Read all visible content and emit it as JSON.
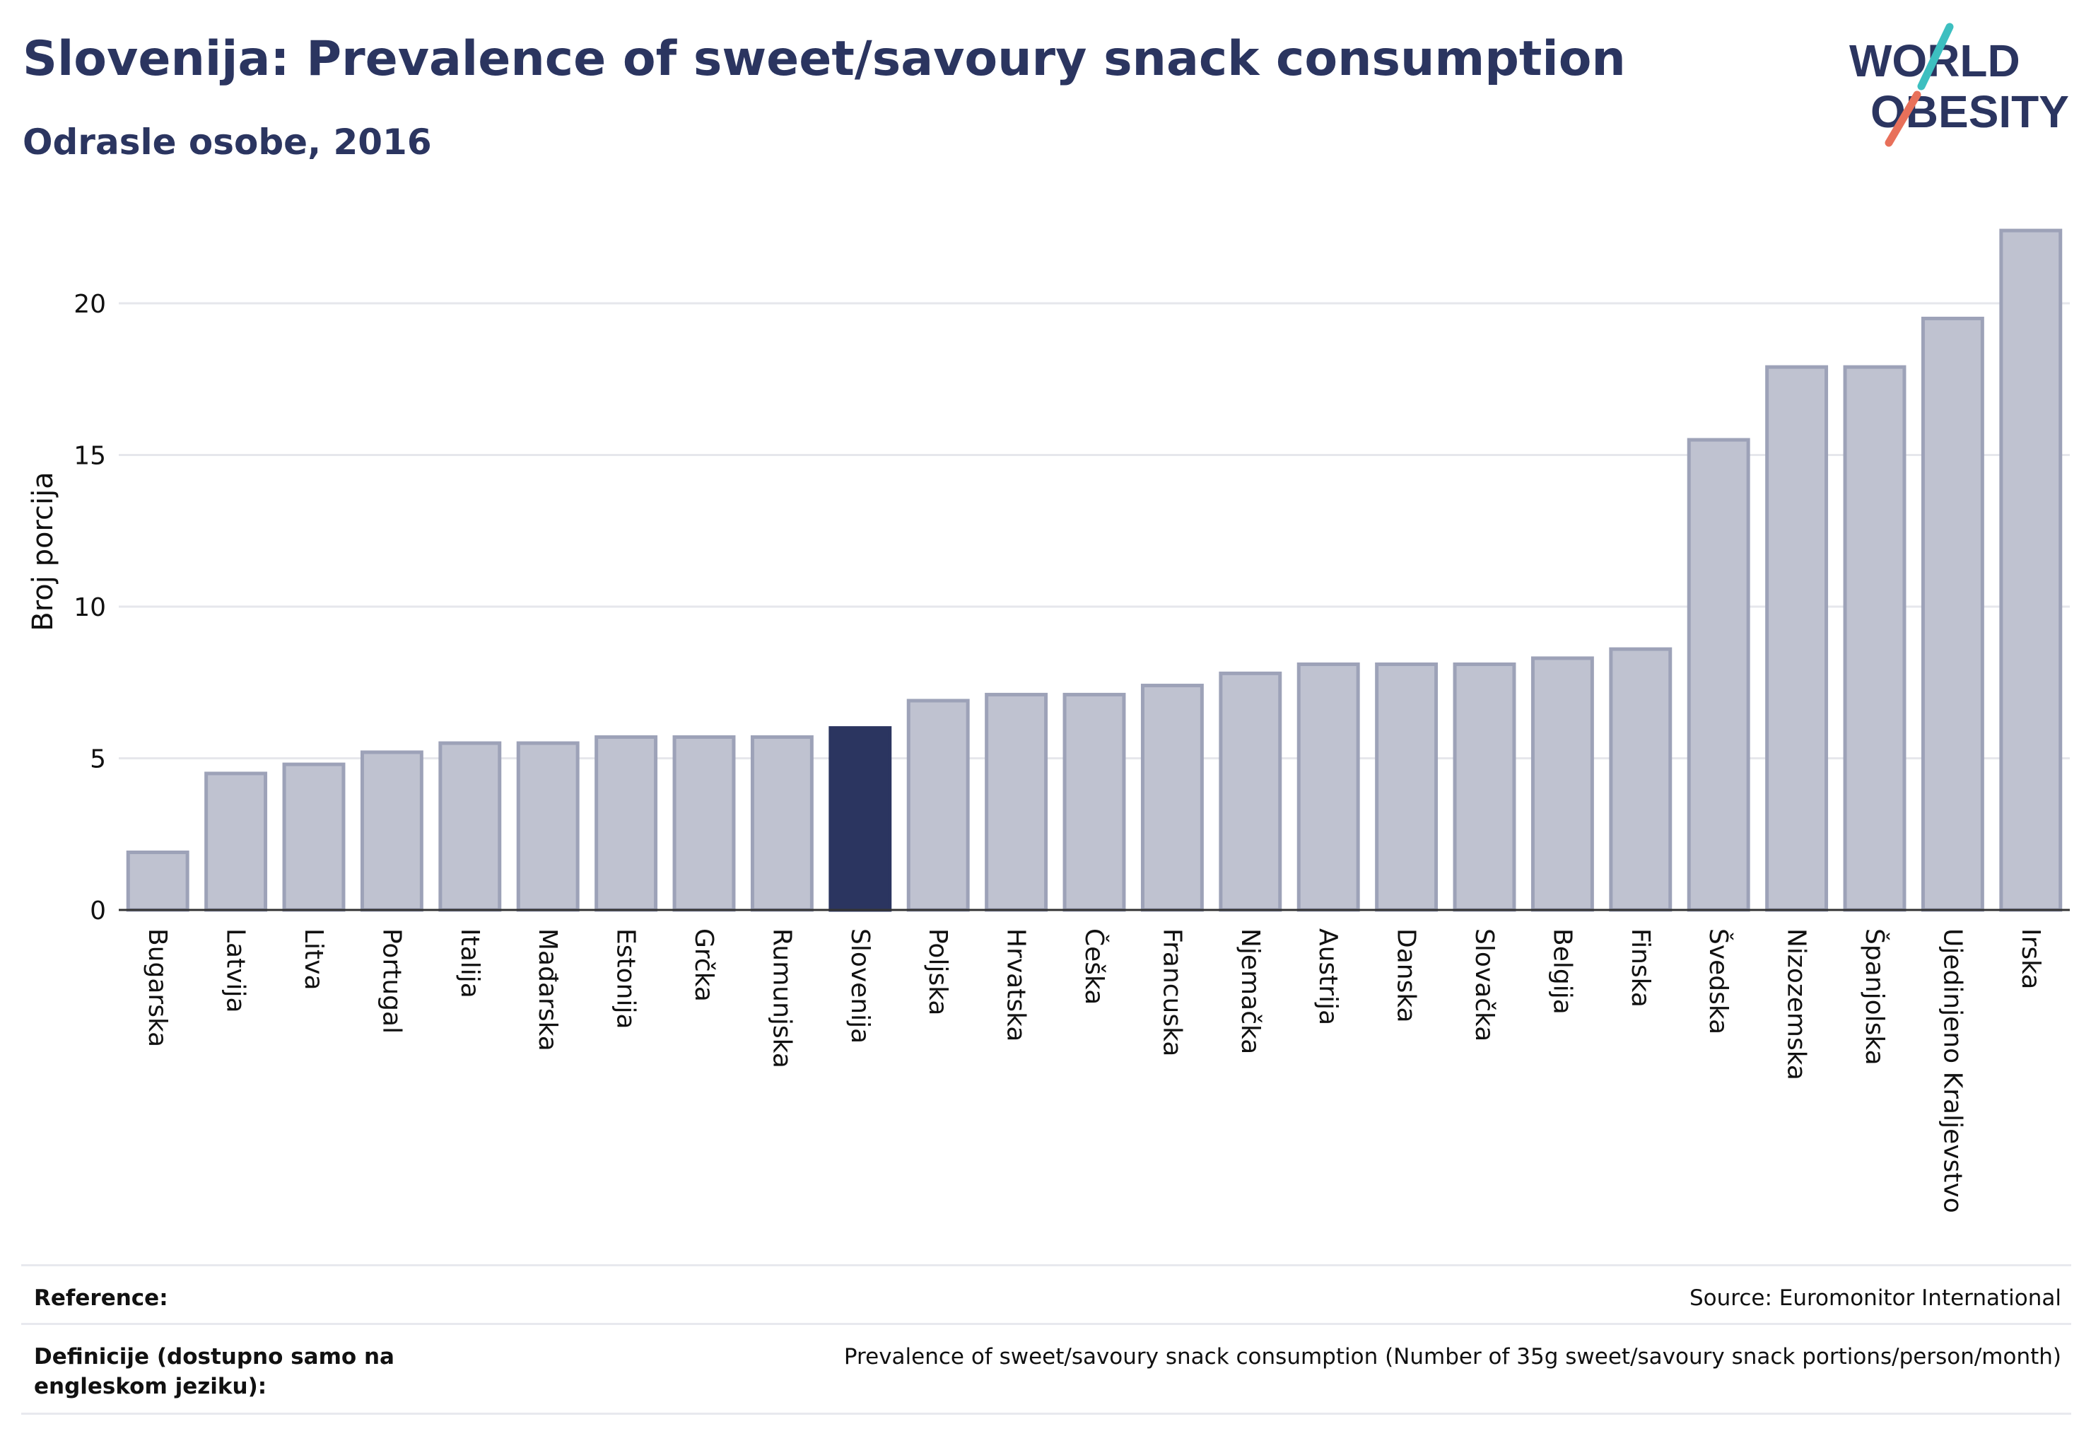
{
  "header": {
    "title": "Slovenija: Prevalence of sweet/savoury snack consumption",
    "subtitle": "Odrasle osobe, 2016"
  },
  "logo": {
    "text_line1": "WORLD",
    "text_line2": "OBESITY",
    "colors": {
      "text": "#2b3560",
      "slash_top": "#3dbfc0",
      "slash_bottom": "#e8705a"
    }
  },
  "colors": {
    "highlight_bar": "#2b3560",
    "bar_fill": "#bfc2d0",
    "bar_stroke": "#9da2b8",
    "grid": "#e6e7ec",
    "axis": "#333333",
    "text": "#111111"
  },
  "chart_data": {
    "type": "bar",
    "title": "Slovenija: Prevalence of sweet/savoury snack consumption",
    "subtitle": "Odrasle osobe, 2016",
    "xlabel": "",
    "ylabel": "Broj porcija",
    "ylim": [
      0,
      23
    ],
    "yticks": [
      0,
      5,
      10,
      15,
      20
    ],
    "grid": true,
    "highlight": "Slovenija",
    "categories": [
      "Bugarska",
      "Latvija",
      "Litva",
      "Portugal",
      "Italija",
      "Mađarska",
      "Estonija",
      "Grčka",
      "Rumunjska",
      "Slovenija",
      "Poljska",
      "Hrvatska",
      "Češka",
      "Francuska",
      "Njemačka",
      "Austrija",
      "Danska",
      "Slovačka",
      "Belgija",
      "Finska",
      "Švedska",
      "Nizozemska",
      "Španjolska",
      "Ujedinjeno Kraljevstvo",
      "Irska"
    ],
    "values": [
      1.9,
      4.5,
      4.8,
      5.2,
      5.5,
      5.5,
      5.7,
      5.7,
      5.7,
      6.0,
      6.9,
      7.1,
      7.1,
      7.4,
      7.8,
      8.1,
      8.1,
      8.1,
      8.3,
      8.6,
      15.5,
      17.9,
      17.9,
      19.5,
      22.4
    ]
  },
  "references": [
    {
      "label": "Reference:",
      "value": "Source: Euromonitor International"
    },
    {
      "label": "Definicije (dostupno samo na engleskom jeziku):",
      "value": "Prevalence of sweet/savoury snack consumption (Number of 35g sweet/savoury snack portions/person/month)"
    }
  ]
}
